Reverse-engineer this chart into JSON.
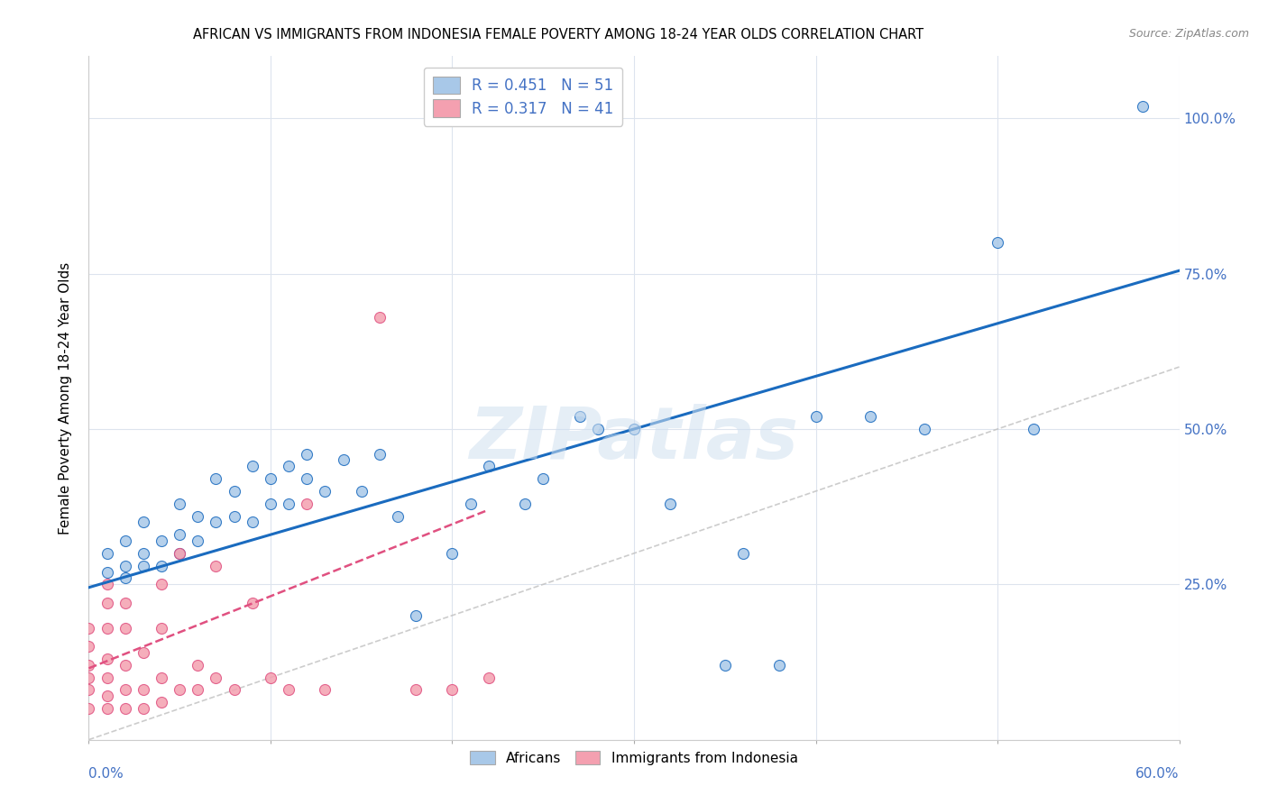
{
  "title": "AFRICAN VS IMMIGRANTS FROM INDONESIA FEMALE POVERTY AMONG 18-24 YEAR OLDS CORRELATION CHART",
  "source": "Source: ZipAtlas.com",
  "ylabel": "Female Poverty Among 18-24 Year Olds",
  "yticks": [
    0.0,
    0.25,
    0.5,
    0.75,
    1.0
  ],
  "ytick_labels": [
    "",
    "25.0%",
    "50.0%",
    "75.0%",
    "100.0%"
  ],
  "xlim": [
    0.0,
    0.6
  ],
  "ylim": [
    0.0,
    1.1
  ],
  "color_african": "#a8c8e8",
  "color_indonesia": "#f4a0b0",
  "color_line_african": "#1a6bbf",
  "color_line_indonesia": "#e05080",
  "color_diag": "#c0c0c0",
  "watermark": "ZIPatlas",
  "africans_x": [
    0.01,
    0.01,
    0.02,
    0.02,
    0.02,
    0.03,
    0.03,
    0.03,
    0.04,
    0.04,
    0.05,
    0.05,
    0.05,
    0.06,
    0.06,
    0.07,
    0.07,
    0.08,
    0.08,
    0.09,
    0.09,
    0.1,
    0.1,
    0.11,
    0.11,
    0.12,
    0.12,
    0.13,
    0.14,
    0.15,
    0.16,
    0.17,
    0.18,
    0.2,
    0.21,
    0.22,
    0.24,
    0.25,
    0.27,
    0.28,
    0.3,
    0.32,
    0.35,
    0.36,
    0.38,
    0.4,
    0.43,
    0.46,
    0.5,
    0.52,
    0.58
  ],
  "africans_y": [
    0.27,
    0.3,
    0.26,
    0.28,
    0.32,
    0.28,
    0.3,
    0.35,
    0.28,
    0.32,
    0.3,
    0.33,
    0.38,
    0.32,
    0.36,
    0.35,
    0.42,
    0.36,
    0.4,
    0.35,
    0.44,
    0.38,
    0.42,
    0.44,
    0.38,
    0.42,
    0.46,
    0.4,
    0.45,
    0.4,
    0.46,
    0.36,
    0.2,
    0.3,
    0.38,
    0.44,
    0.38,
    0.42,
    0.52,
    0.5,
    0.5,
    0.38,
    0.12,
    0.3,
    0.12,
    0.52,
    0.52,
    0.5,
    0.8,
    0.5,
    1.02
  ],
  "indonesia_x": [
    0.0,
    0.0,
    0.0,
    0.0,
    0.0,
    0.0,
    0.01,
    0.01,
    0.01,
    0.01,
    0.01,
    0.01,
    0.01,
    0.02,
    0.02,
    0.02,
    0.02,
    0.02,
    0.03,
    0.03,
    0.03,
    0.04,
    0.04,
    0.04,
    0.04,
    0.05,
    0.05,
    0.06,
    0.06,
    0.07,
    0.07,
    0.08,
    0.09,
    0.1,
    0.11,
    0.12,
    0.13,
    0.16,
    0.18,
    0.2,
    0.22
  ],
  "indonesia_y": [
    0.05,
    0.08,
    0.1,
    0.12,
    0.15,
    0.18,
    0.05,
    0.07,
    0.1,
    0.13,
    0.18,
    0.22,
    0.25,
    0.05,
    0.08,
    0.12,
    0.18,
    0.22,
    0.05,
    0.08,
    0.14,
    0.06,
    0.1,
    0.18,
    0.25,
    0.08,
    0.3,
    0.08,
    0.12,
    0.1,
    0.28,
    0.08,
    0.22,
    0.1,
    0.08,
    0.38,
    0.08,
    0.68,
    0.08,
    0.08,
    0.1
  ],
  "african_line_x": [
    0.0,
    0.6
  ],
  "african_line_y": [
    0.245,
    0.755
  ],
  "indonesia_line_x": [
    0.0,
    0.22
  ],
  "indonesia_line_y": [
    0.115,
    0.37
  ]
}
